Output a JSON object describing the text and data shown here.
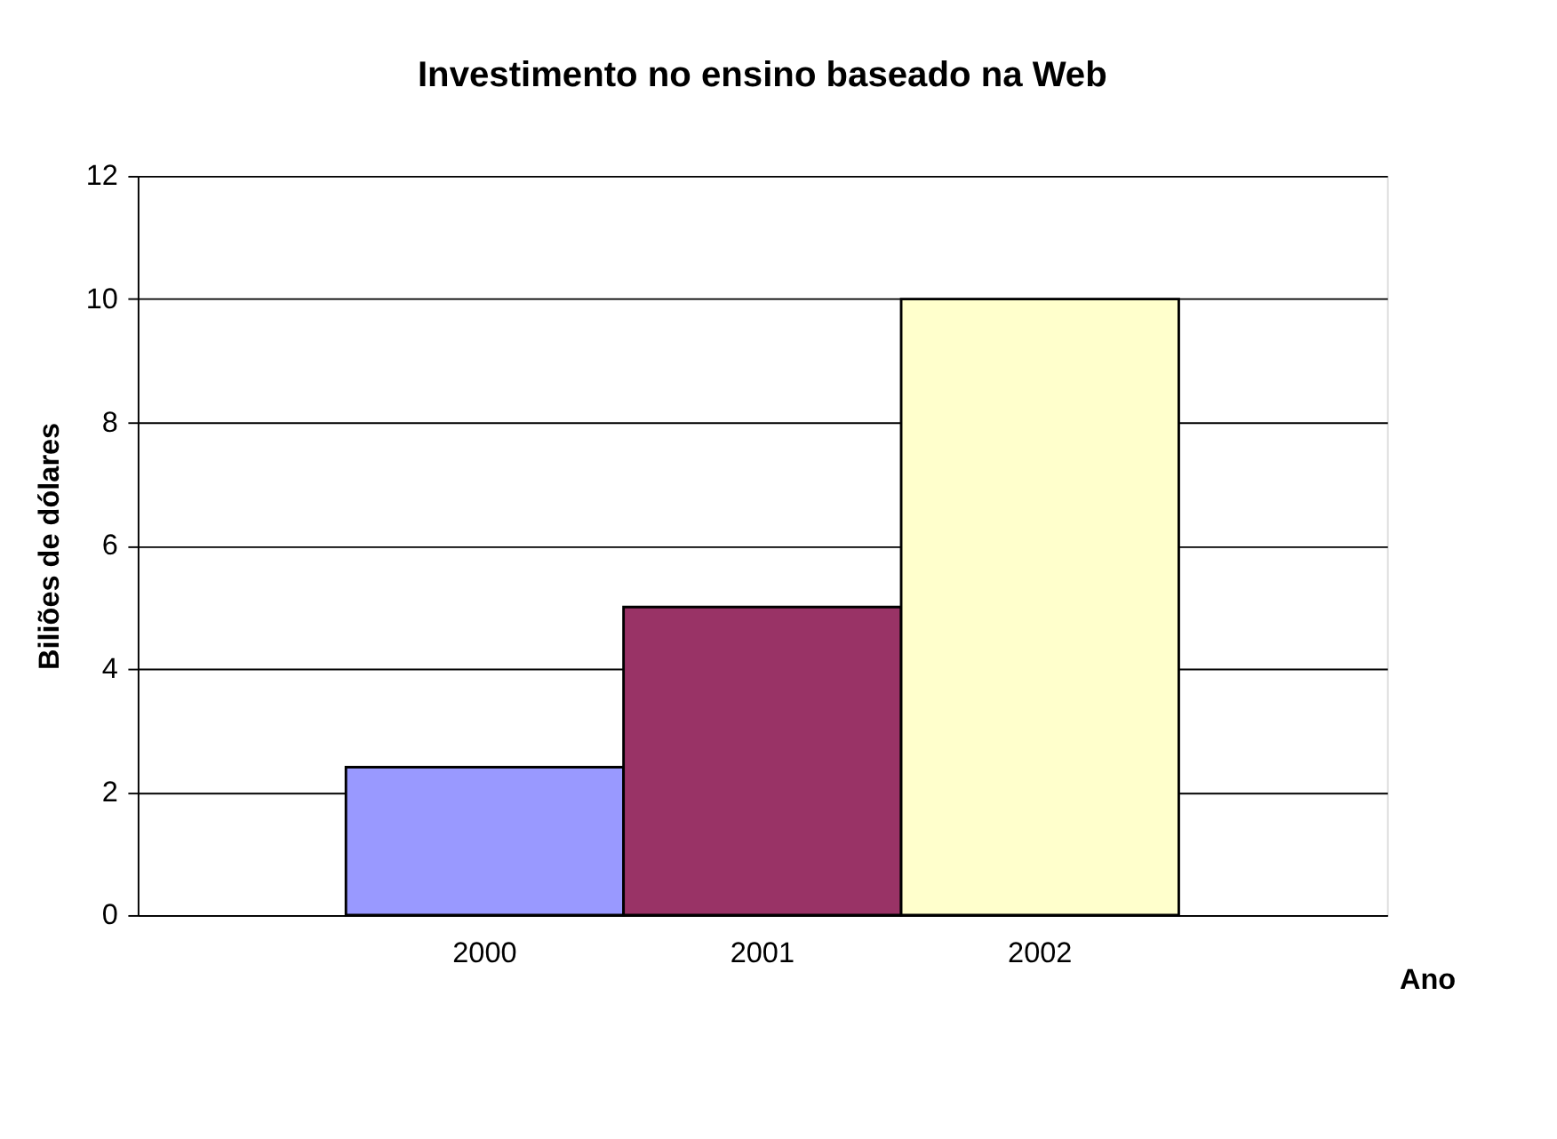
{
  "chart_data": {
    "type": "bar",
    "title": "Investimento no ensino baseado na Web",
    "xlabel": "Ano",
    "ylabel": "Biliões de dólares",
    "categories": [
      "2000",
      "2001",
      "2002"
    ],
    "values": [
      2.4,
      5,
      10
    ],
    "colors": [
      "#9999ff",
      "#993366",
      "#ffffcc"
    ],
    "ylim": [
      0,
      12
    ],
    "yticks": [
      0,
      2,
      4,
      6,
      8,
      10,
      12
    ],
    "grid": "y",
    "legend": false
  }
}
